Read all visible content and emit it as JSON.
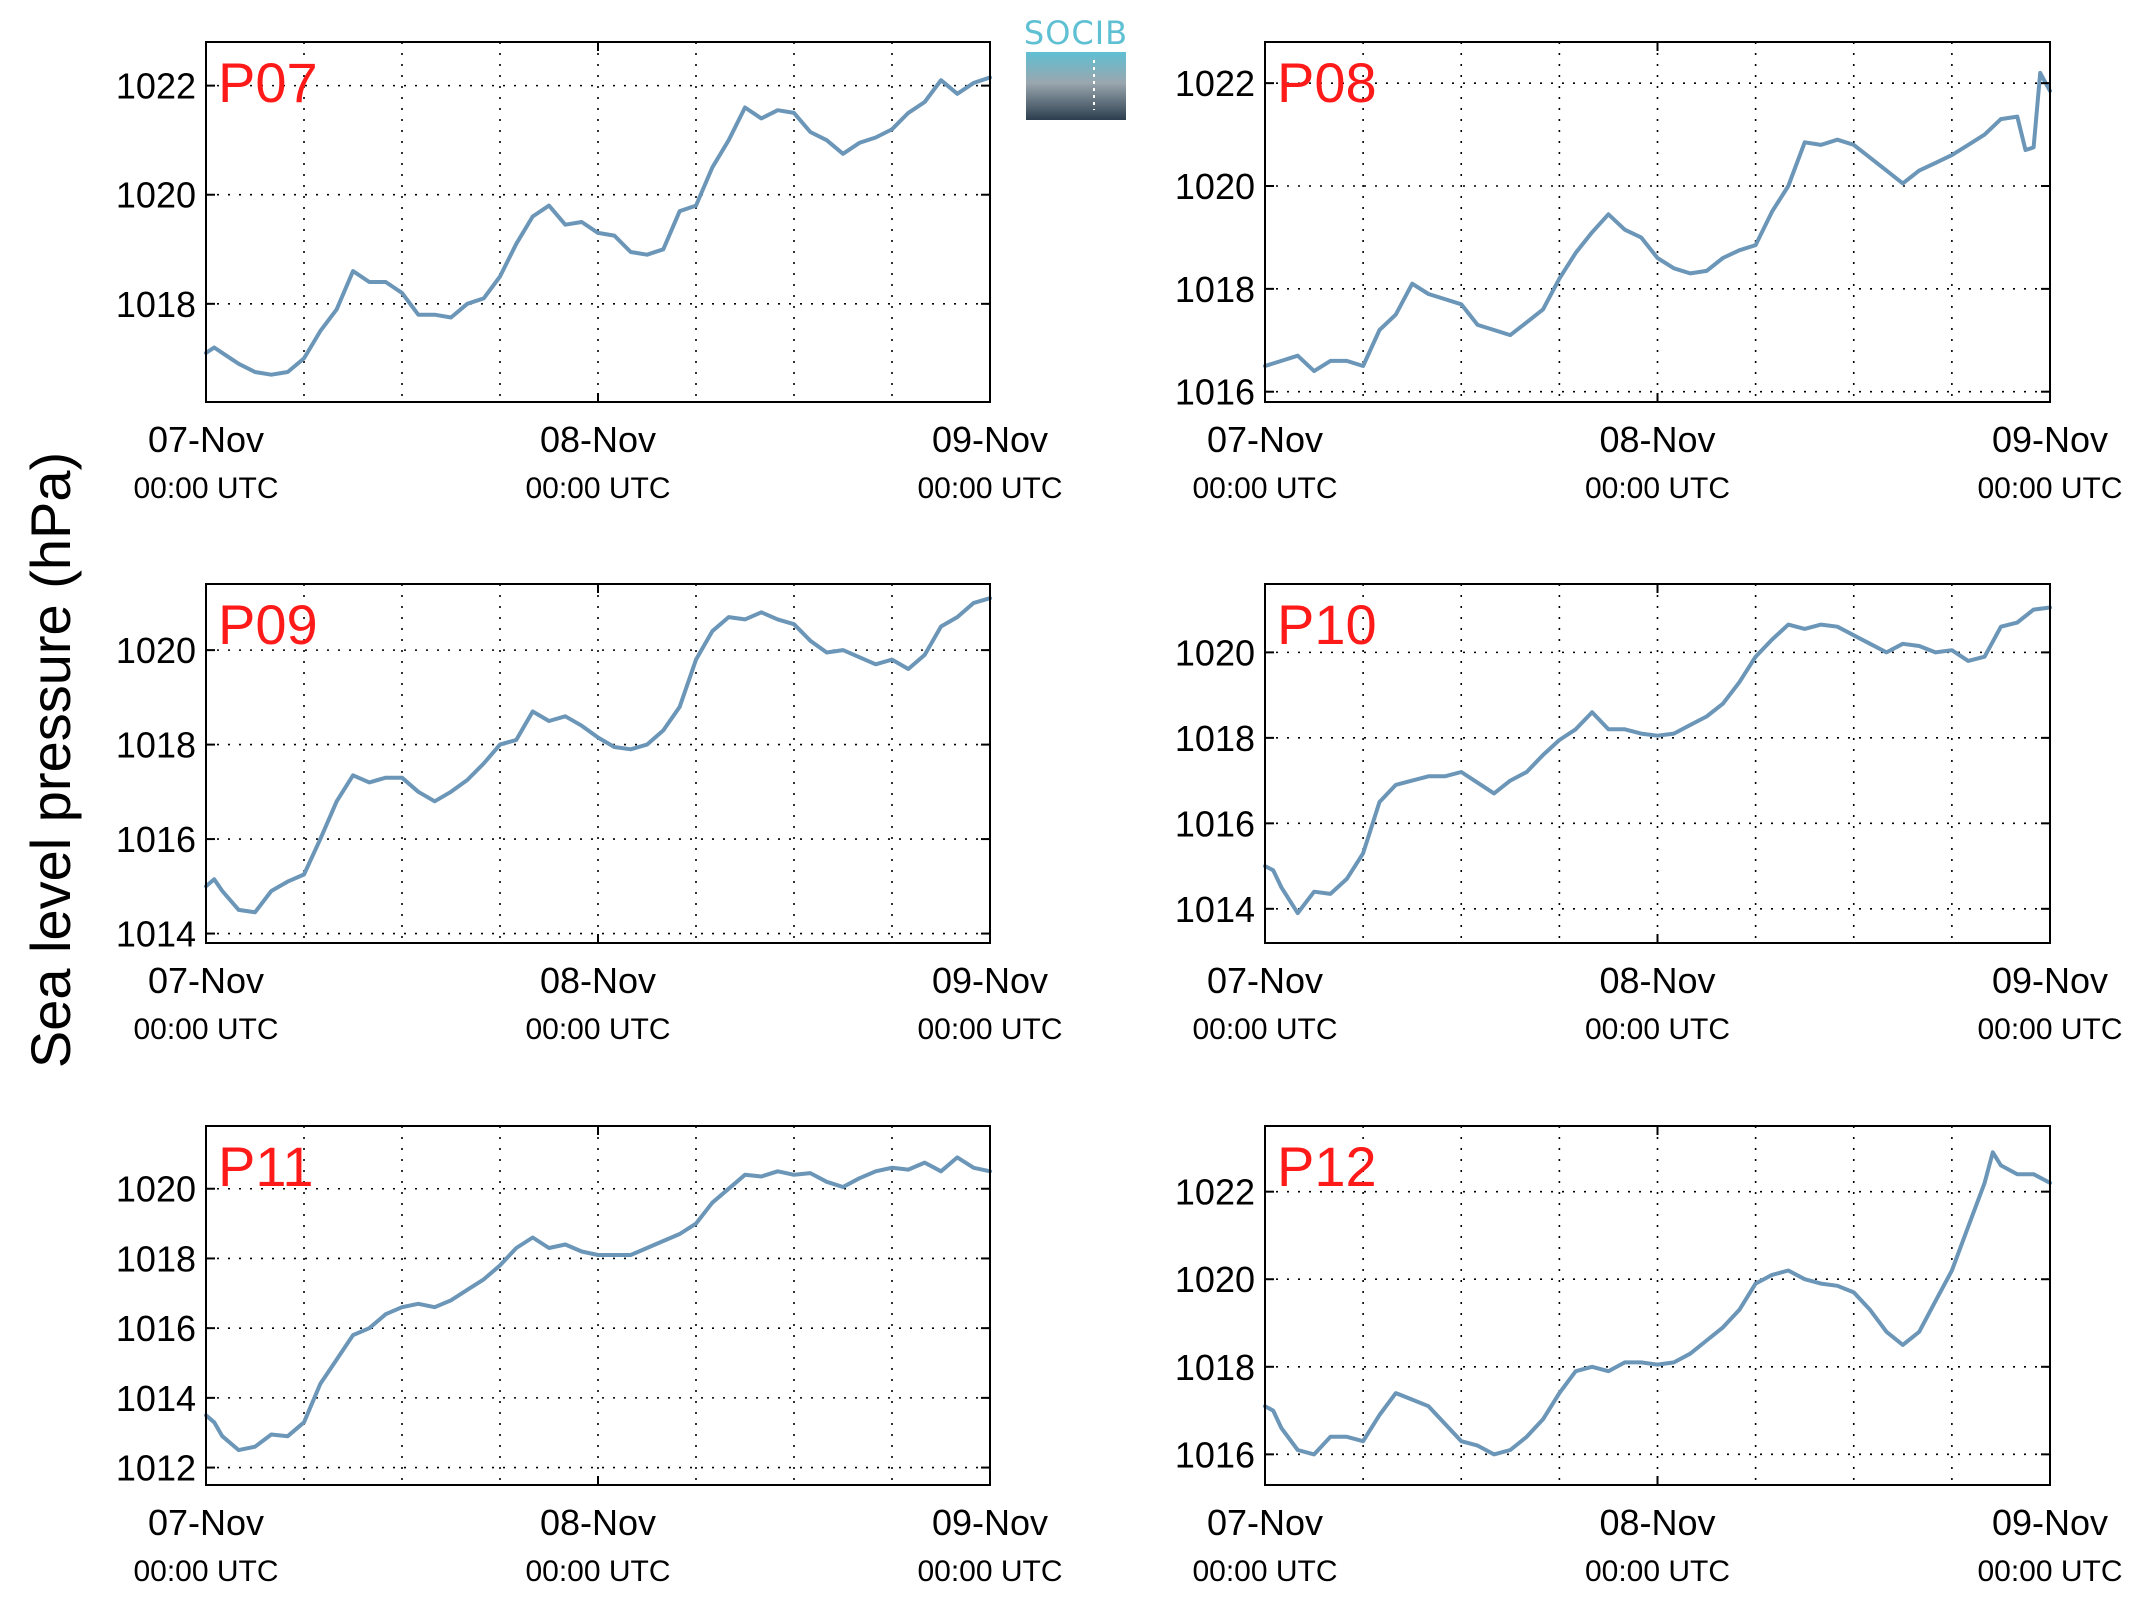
{
  "figure": {
    "ylabel": "Sea level pressure (hPa)",
    "logo_text": "SOCIB"
  },
  "colors": {
    "line": "#6b96b8",
    "panel_label": "#ff1a1a",
    "axis": "#000000",
    "grid": "#000000",
    "logo_top": "#5fbfd3",
    "logo_bottom": "#2c3e4e"
  },
  "chart_data": [
    {
      "type": "line",
      "panel_label": "P07",
      "x_tick_labels": [
        {
          "date": "07-Nov",
          "time": "00:00 UTC"
        },
        {
          "date": "08-Nov",
          "time": "00:00 UTC"
        },
        {
          "date": "09-Nov",
          "time": "00:00 UTC"
        }
      ],
      "xlim_hours": [
        0,
        48
      ],
      "ylim": [
        1016.2,
        1022.8
      ],
      "yticks": [
        1018,
        1020,
        1022
      ],
      "grid": true,
      "series": [
        {
          "x_hours": [
            0,
            0.5,
            1,
            2,
            3,
            4,
            5,
            6,
            7,
            8,
            9,
            10,
            11,
            12,
            13,
            14,
            15,
            16,
            17,
            18,
            19,
            20,
            21,
            22,
            23,
            24,
            25,
            26,
            27,
            28,
            29,
            30,
            31,
            32,
            33,
            34,
            35,
            36,
            37,
            38,
            39,
            40,
            41,
            42,
            43,
            44,
            45,
            46,
            47,
            48
          ],
          "y": [
            1017.1,
            1017.2,
            1017.1,
            1016.9,
            1016.75,
            1016.7,
            1016.75,
            1017.0,
            1017.5,
            1017.9,
            1018.6,
            1018.4,
            1018.4,
            1018.2,
            1017.8,
            1017.8,
            1017.75,
            1018.0,
            1018.1,
            1018.5,
            1019.1,
            1019.6,
            1019.8,
            1019.45,
            1019.5,
            1019.3,
            1019.25,
            1018.95,
            1018.9,
            1019.0,
            1019.7,
            1019.8,
            1020.5,
            1021.0,
            1021.6,
            1021.4,
            1021.55,
            1021.5,
            1021.15,
            1021.0,
            1020.75,
            1020.95,
            1021.05,
            1021.2,
            1021.5,
            1021.7,
            1022.1,
            1021.85,
            1022.05,
            1022.15
          ]
        }
      ]
    },
    {
      "type": "line",
      "panel_label": "P08",
      "x_tick_labels": [
        {
          "date": "07-Nov",
          "time": "00:00 UTC"
        },
        {
          "date": "08-Nov",
          "time": "00:00 UTC"
        },
        {
          "date": "09-Nov",
          "time": "00:00 UTC"
        }
      ],
      "xlim_hours": [
        0,
        48
      ],
      "ylim": [
        1015.8,
        1022.8
      ],
      "yticks": [
        1016,
        1018,
        1020,
        1022
      ],
      "grid": true,
      "series": [
        {
          "x_hours": [
            0,
            1,
            2,
            3,
            4,
            5,
            6,
            7,
            8,
            9,
            10,
            11,
            12,
            13,
            14,
            15,
            16,
            17,
            18,
            19,
            20,
            21,
            22,
            23,
            24,
            25,
            26,
            27,
            28,
            29,
            30,
            31,
            32,
            33,
            34,
            35,
            36,
            37,
            38,
            39,
            40,
            41,
            42,
            43,
            44,
            45,
            46,
            46.5,
            47,
            47.4,
            48
          ],
          "y": [
            1016.5,
            1016.6,
            1016.7,
            1016.4,
            1016.6,
            1016.6,
            1016.5,
            1017.2,
            1017.5,
            1018.1,
            1017.9,
            1017.8,
            1017.7,
            1017.3,
            1017.2,
            1017.1,
            1017.35,
            1017.6,
            1018.2,
            1018.7,
            1019.1,
            1019.45,
            1019.15,
            1019.0,
            1018.6,
            1018.4,
            1018.3,
            1018.35,
            1018.6,
            1018.75,
            1018.85,
            1019.5,
            1020.0,
            1020.85,
            1020.8,
            1020.9,
            1020.8,
            1020.55,
            1020.3,
            1020.05,
            1020.3,
            1020.45,
            1020.6,
            1020.8,
            1021.0,
            1021.3,
            1021.35,
            1020.7,
            1020.75,
            1022.2,
            1021.85
          ]
        }
      ]
    },
    {
      "type": "line",
      "panel_label": "P09",
      "x_tick_labels": [
        {
          "date": "07-Nov",
          "time": "00:00 UTC"
        },
        {
          "date": "08-Nov",
          "time": "00:00 UTC"
        },
        {
          "date": "09-Nov",
          "time": "00:00 UTC"
        }
      ],
      "xlim_hours": [
        0,
        48
      ],
      "ylim": [
        1013.8,
        1021.4
      ],
      "yticks": [
        1014,
        1016,
        1018,
        1020
      ],
      "grid": true,
      "series": [
        {
          "x_hours": [
            0,
            0.5,
            1,
            2,
            3,
            4,
            5,
            6,
            7,
            8,
            9,
            10,
            11,
            12,
            13,
            14,
            15,
            16,
            17,
            18,
            19,
            20,
            21,
            22,
            23,
            24,
            25,
            26,
            27,
            28,
            29,
            30,
            31,
            32,
            33,
            34,
            35,
            36,
            37,
            38,
            39,
            40,
            41,
            42,
            43,
            44,
            45,
            46,
            47,
            48
          ],
          "y": [
            1015.0,
            1015.15,
            1014.9,
            1014.5,
            1014.45,
            1014.9,
            1015.1,
            1015.25,
            1016.0,
            1016.8,
            1017.35,
            1017.2,
            1017.3,
            1017.3,
            1017.0,
            1016.8,
            1017.0,
            1017.25,
            1017.6,
            1018.0,
            1018.1,
            1018.7,
            1018.5,
            1018.6,
            1018.4,
            1018.15,
            1017.95,
            1017.9,
            1018.0,
            1018.3,
            1018.8,
            1019.8,
            1020.4,
            1020.7,
            1020.65,
            1020.8,
            1020.65,
            1020.55,
            1020.2,
            1019.95,
            1020.0,
            1019.85,
            1019.7,
            1019.8,
            1019.6,
            1019.9,
            1020.5,
            1020.7,
            1021.0,
            1021.1
          ]
        }
      ]
    },
    {
      "type": "line",
      "panel_label": "P10",
      "x_tick_labels": [
        {
          "date": "07-Nov",
          "time": "00:00 UTC"
        },
        {
          "date": "08-Nov",
          "time": "00:00 UTC"
        },
        {
          "date": "09-Nov",
          "time": "00:00 UTC"
        }
      ],
      "xlim_hours": [
        0,
        48
      ],
      "ylim": [
        1013.2,
        1021.6
      ],
      "yticks": [
        1014,
        1016,
        1018,
        1020
      ],
      "grid": true,
      "series": [
        {
          "x_hours": [
            0,
            0.5,
            1,
            2,
            3,
            4,
            5,
            6,
            7,
            8,
            9,
            10,
            11,
            12,
            13,
            14,
            15,
            16,
            17,
            18,
            19,
            20,
            21,
            22,
            23,
            24,
            25,
            26,
            27,
            28,
            29,
            30,
            31,
            32,
            33,
            34,
            35,
            36,
            37,
            38,
            39,
            40,
            41,
            42,
            43,
            44,
            45,
            46,
            47,
            48
          ],
          "y": [
            1015.0,
            1014.9,
            1014.5,
            1013.9,
            1014.4,
            1014.35,
            1014.7,
            1015.3,
            1016.5,
            1016.9,
            1017.0,
            1017.1,
            1017.1,
            1017.2,
            1016.95,
            1016.7,
            1017.0,
            1017.2,
            1017.6,
            1017.95,
            1018.2,
            1018.6,
            1018.2,
            1018.2,
            1018.1,
            1018.05,
            1018.1,
            1018.3,
            1018.5,
            1018.8,
            1019.3,
            1019.9,
            1020.3,
            1020.65,
            1020.55,
            1020.65,
            1020.6,
            1020.4,
            1020.2,
            1020.0,
            1020.2,
            1020.15,
            1020.0,
            1020.05,
            1019.8,
            1019.9,
            1020.6,
            1020.7,
            1021.0,
            1021.05
          ]
        }
      ]
    },
    {
      "type": "line",
      "panel_label": "P11",
      "x_tick_labels": [
        {
          "date": "07-Nov",
          "time": "00:00 UTC"
        },
        {
          "date": "08-Nov",
          "time": "00:00 UTC"
        },
        {
          "date": "09-Nov",
          "time": "00:00 UTC"
        }
      ],
      "xlim_hours": [
        0,
        48
      ],
      "ylim": [
        1011.5,
        1021.8
      ],
      "yticks": [
        1012,
        1014,
        1016,
        1018,
        1020
      ],
      "grid": true,
      "series": [
        {
          "x_hours": [
            0,
            0.5,
            1,
            2,
            3,
            4,
            5,
            6,
            7,
            8,
            9,
            10,
            11,
            12,
            13,
            14,
            15,
            16,
            17,
            18,
            19,
            20,
            21,
            22,
            23,
            24,
            25,
            26,
            27,
            28,
            29,
            30,
            31,
            32,
            33,
            34,
            35,
            36,
            37,
            38,
            39,
            40,
            41,
            42,
            43,
            44,
            45,
            46,
            47,
            48
          ],
          "y": [
            1013.5,
            1013.3,
            1012.9,
            1012.5,
            1012.6,
            1012.95,
            1012.9,
            1013.3,
            1014.4,
            1015.1,
            1015.8,
            1016.0,
            1016.4,
            1016.6,
            1016.7,
            1016.6,
            1016.8,
            1017.1,
            1017.4,
            1017.8,
            1018.3,
            1018.6,
            1018.3,
            1018.4,
            1018.2,
            1018.1,
            1018.1,
            1018.1,
            1018.3,
            1018.5,
            1018.7,
            1019.0,
            1019.6,
            1020.0,
            1020.4,
            1020.35,
            1020.5,
            1020.4,
            1020.45,
            1020.2,
            1020.05,
            1020.3,
            1020.5,
            1020.6,
            1020.55,
            1020.75,
            1020.5,
            1020.9,
            1020.6,
            1020.5
          ]
        }
      ]
    },
    {
      "type": "line",
      "panel_label": "P12",
      "x_tick_labels": [
        {
          "date": "07-Nov",
          "time": "00:00 UTC"
        },
        {
          "date": "08-Nov",
          "time": "00:00 UTC"
        },
        {
          "date": "09-Nov",
          "time": "00:00 UTC"
        }
      ],
      "xlim_hours": [
        0,
        48
      ],
      "ylim": [
        1015.3,
        1023.5
      ],
      "yticks": [
        1016,
        1018,
        1020,
        1022
      ],
      "grid": true,
      "series": [
        {
          "x_hours": [
            0,
            0.5,
            1,
            2,
            3,
            4,
            5,
            6,
            7,
            8,
            9,
            10,
            11,
            12,
            13,
            14,
            15,
            16,
            17,
            18,
            19,
            20,
            21,
            22,
            23,
            24,
            25,
            26,
            27,
            28,
            29,
            30,
            31,
            32,
            33,
            34,
            35,
            36,
            37,
            38,
            39,
            40,
            41,
            42,
            43,
            44,
            44.5,
            45,
            46,
            47,
            48
          ],
          "y": [
            1017.1,
            1017.0,
            1016.6,
            1016.1,
            1016.0,
            1016.4,
            1016.4,
            1016.3,
            1016.9,
            1017.4,
            1017.25,
            1017.1,
            1016.7,
            1016.3,
            1016.2,
            1016.0,
            1016.1,
            1016.4,
            1016.8,
            1017.4,
            1017.9,
            1018.0,
            1017.9,
            1018.1,
            1018.1,
            1018.05,
            1018.1,
            1018.3,
            1018.6,
            1018.9,
            1019.3,
            1019.9,
            1020.1,
            1020.2,
            1020.0,
            1019.9,
            1019.85,
            1019.7,
            1019.3,
            1018.8,
            1018.5,
            1018.8,
            1019.5,
            1020.2,
            1021.2,
            1022.2,
            1022.9,
            1022.6,
            1022.4,
            1022.4,
            1022.2
          ]
        }
      ]
    }
  ]
}
